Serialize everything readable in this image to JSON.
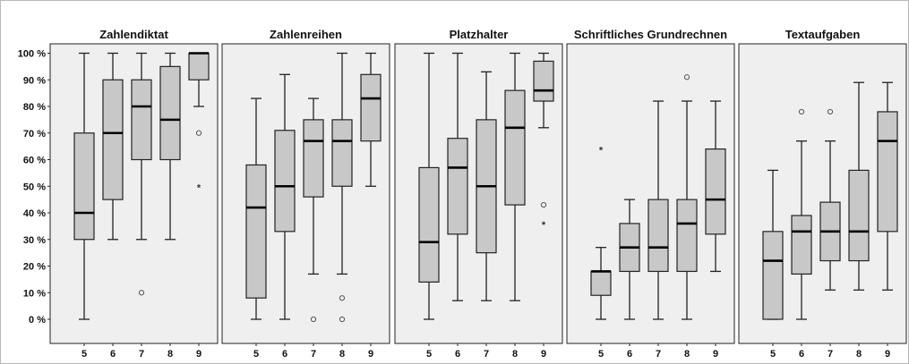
{
  "chart_data": {
    "type": "box",
    "y_axis": {
      "ylim": [
        0,
        100
      ],
      "ticks": [
        0,
        10,
        20,
        30,
        40,
        50,
        60,
        70,
        80,
        90,
        100
      ],
      "tick_labels": [
        "0 %",
        "10 %",
        "20 %",
        "30 %",
        "40 %",
        "50 %",
        "60 %",
        "70 %",
        "80 %",
        "90 %",
        "100 %"
      ]
    },
    "panels": [
      {
        "title": "Zahlendiktat",
        "categories": [
          "5",
          "6",
          "7",
          "8",
          "9"
        ],
        "boxes": [
          {
            "min": 0,
            "q1": 30,
            "median": 40,
            "q3": 70,
            "max": 100,
            "outliers": [],
            "extremes": []
          },
          {
            "min": 30,
            "q1": 45,
            "median": 70,
            "q3": 90,
            "max": 100,
            "outliers": [],
            "extremes": []
          },
          {
            "min": 30,
            "q1": 60,
            "median": 80,
            "q3": 90,
            "max": 100,
            "outliers": [
              10
            ],
            "extremes": []
          },
          {
            "min": 30,
            "q1": 60,
            "median": 75,
            "q3": 95,
            "max": 100,
            "outliers": [],
            "extremes": []
          },
          {
            "min": 80,
            "q1": 90,
            "median": 100,
            "q3": 100,
            "max": 100,
            "outliers": [
              70
            ],
            "extremes": [
              50
            ]
          }
        ]
      },
      {
        "title": "Zahlenreihen",
        "categories": [
          "5",
          "6",
          "7",
          "8",
          "9"
        ],
        "boxes": [
          {
            "min": 0,
            "q1": 8,
            "median": 42,
            "q3": 58,
            "max": 83,
            "outliers": [],
            "extremes": []
          },
          {
            "min": 0,
            "q1": 33,
            "median": 50,
            "q3": 71,
            "max": 92,
            "outliers": [],
            "extremes": []
          },
          {
            "min": 17,
            "q1": 46,
            "median": 67,
            "q3": 75,
            "max": 83,
            "outliers": [
              0
            ],
            "extremes": []
          },
          {
            "min": 17,
            "q1": 50,
            "median": 67,
            "q3": 75,
            "max": 100,
            "outliers": [
              8,
              0
            ],
            "extremes": []
          },
          {
            "min": 50,
            "q1": 67,
            "median": 83,
            "q3": 92,
            "max": 100,
            "outliers": [],
            "extremes": []
          }
        ]
      },
      {
        "title": "Platzhalter",
        "categories": [
          "5",
          "6",
          "7",
          "8",
          "9"
        ],
        "boxes": [
          {
            "min": 0,
            "q1": 14,
            "median": 29,
            "q3": 57,
            "max": 100,
            "outliers": [],
            "extremes": []
          },
          {
            "min": 7,
            "q1": 32,
            "median": 57,
            "q3": 68,
            "max": 100,
            "outliers": [],
            "extremes": []
          },
          {
            "min": 7,
            "q1": 25,
            "median": 50,
            "q3": 75,
            "max": 93,
            "outliers": [],
            "extremes": []
          },
          {
            "min": 7,
            "q1": 43,
            "median": 72,
            "q3": 86,
            "max": 100,
            "outliers": [],
            "extremes": []
          },
          {
            "min": 72,
            "q1": 82,
            "median": 86,
            "q3": 97,
            "max": 100,
            "outliers": [
              43
            ],
            "extremes": [
              36
            ]
          }
        ]
      },
      {
        "title": "Schriftliches Grundrechnen",
        "categories": [
          "5",
          "6",
          "7",
          "8",
          "9"
        ],
        "boxes": [
          {
            "min": 0,
            "q1": 9,
            "median": 18,
            "q3": 18,
            "max": 27,
            "outliers": [],
            "extremes": [
              64
            ]
          },
          {
            "min": 0,
            "q1": 18,
            "median": 27,
            "q3": 36,
            "max": 45,
            "outliers": [],
            "extremes": []
          },
          {
            "min": 0,
            "q1": 18,
            "median": 27,
            "q3": 45,
            "max": 82,
            "outliers": [],
            "extremes": []
          },
          {
            "min": 0,
            "q1": 18,
            "median": 36,
            "q3": 45,
            "max": 82,
            "outliers": [
              91
            ],
            "extremes": []
          },
          {
            "min": 18,
            "q1": 32,
            "median": 45,
            "q3": 64,
            "max": 82,
            "outliers": [],
            "extremes": []
          }
        ]
      },
      {
        "title": "Textaufgaben",
        "categories": [
          "5",
          "6",
          "7",
          "8",
          "9"
        ],
        "boxes": [
          {
            "min": 0,
            "q1": 0,
            "median": 22,
            "q3": 33,
            "max": 56,
            "outliers": [],
            "extremes": []
          },
          {
            "min": 0,
            "q1": 17,
            "median": 33,
            "q3": 39,
            "max": 67,
            "outliers": [
              78
            ],
            "extremes": []
          },
          {
            "min": 11,
            "q1": 22,
            "median": 33,
            "q3": 44,
            "max": 67,
            "outliers": [
              78
            ],
            "extremes": []
          },
          {
            "min": 11,
            "q1": 22,
            "median": 33,
            "q3": 56,
            "max": 89,
            "outliers": [],
            "extremes": []
          },
          {
            "min": 11,
            "q1": 33,
            "median": 67,
            "q3": 78,
            "max": 89,
            "outliers": [],
            "extremes": []
          }
        ]
      }
    ],
    "colors": {
      "box_fill": "#c8c8c8",
      "panel_background": "#efefef",
      "line": "#222222"
    },
    "outlier_marker": "circle",
    "extreme_marker": "*"
  }
}
